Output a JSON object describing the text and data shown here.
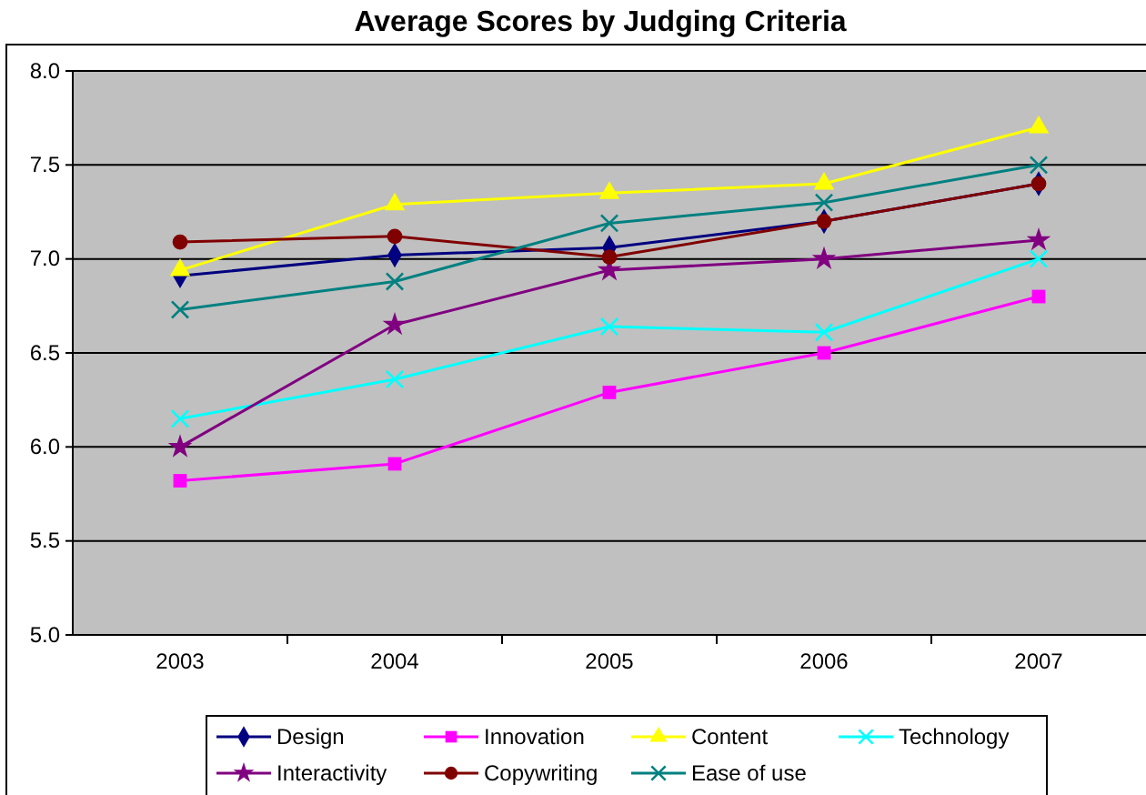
{
  "chart_data": {
    "type": "line",
    "title": "Average Scores by Judging Criteria",
    "categories": [
      "2003",
      "2004",
      "2005",
      "2006",
      "2007"
    ],
    "series": [
      {
        "name": "Design",
        "color": "#000080",
        "marker": "diamond",
        "values": [
          6.91,
          7.02,
          7.06,
          7.2,
          7.4
        ]
      },
      {
        "name": "Innovation",
        "color": "#ff00ff",
        "marker": "square",
        "values": [
          5.82,
          5.91,
          6.29,
          6.5,
          6.8
        ]
      },
      {
        "name": "Content",
        "color": "#ffff00",
        "marker": "triangle",
        "values": [
          6.94,
          7.29,
          7.35,
          7.4,
          7.7
        ]
      },
      {
        "name": "Technology",
        "color": "#00ffff",
        "marker": "cross",
        "values": [
          6.15,
          6.36,
          6.64,
          6.61,
          7.0
        ]
      },
      {
        "name": "Interactivity",
        "color": "#800080",
        "marker": "star",
        "values": [
          6.0,
          6.65,
          6.94,
          7.0,
          7.1
        ]
      },
      {
        "name": "Copywriting",
        "color": "#800000",
        "marker": "circle",
        "values": [
          7.09,
          7.12,
          7.01,
          7.2,
          7.4
        ]
      },
      {
        "name": "Ease of use",
        "color": "#008080",
        "marker": "cross",
        "values": [
          6.73,
          6.88,
          7.19,
          7.3,
          7.5
        ]
      }
    ],
    "ylim": [
      5.0,
      8.0
    ],
    "yticks": [
      {
        "value": 5,
        "label": "5.0"
      },
      {
        "value": 5.5,
        "label": "5.5"
      },
      {
        "value": 6,
        "label": "6.0"
      },
      {
        "value": 6.5,
        "label": "6.5"
      },
      {
        "value": 7,
        "label": "7.0"
      },
      {
        "value": 7.5,
        "label": "7.5"
      },
      {
        "value": 8,
        "label": "8.0"
      }
    ],
    "grid": "y",
    "legend": "bottom"
  }
}
